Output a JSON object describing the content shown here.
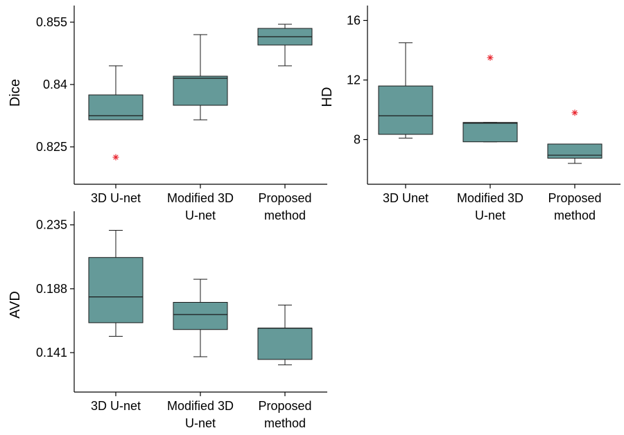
{
  "style": {
    "box_fill": "#659a99",
    "box_stroke": "#1a1a1a",
    "outlier_color": "#e8202a"
  },
  "chart_data": [
    {
      "type": "box",
      "ylabel": "Dice",
      "ylim": [
        0.816,
        0.859
      ],
      "yticks": [
        0.825,
        0.84,
        0.855
      ],
      "ytick_labels": [
        "0.825",
        "0.84",
        "0.855"
      ],
      "categories": [
        [
          "3D U-net"
        ],
        [
          "Modified 3D",
          "U-net"
        ],
        [
          "Proposed",
          "method"
        ]
      ],
      "boxes": [
        {
          "whisker_low": 0.8315,
          "q1": 0.8315,
          "median": 0.8325,
          "q3": 0.8375,
          "whisker_high": 0.8445,
          "outliers": [
            0.8225
          ]
        },
        {
          "whisker_low": 0.8315,
          "q1": 0.835,
          "median": 0.8415,
          "q3": 0.842,
          "whisker_high": 0.852,
          "outliers": []
        },
        {
          "whisker_low": 0.8445,
          "q1": 0.8495,
          "median": 0.8515,
          "q3": 0.8535,
          "whisker_high": 0.8545,
          "outliers": []
        }
      ]
    },
    {
      "type": "box",
      "ylabel": "HD",
      "ylim": [
        5,
        17
      ],
      "yticks": [
        8,
        12,
        16
      ],
      "ytick_labels": [
        "8",
        "12",
        "16"
      ],
      "categories": [
        [
          "3D Unet"
        ],
        [
          "Modified 3D",
          "U-net"
        ],
        [
          "Proposed",
          "method"
        ]
      ],
      "boxes": [
        {
          "whisker_low": 8.1,
          "q1": 8.35,
          "median": 9.6,
          "q3": 11.6,
          "whisker_high": 14.5,
          "outliers": []
        },
        {
          "whisker_low": 7.85,
          "q1": 7.85,
          "median": 9.1,
          "q3": 9.15,
          "whisker_high": 9.15,
          "outliers": [
            13.5
          ]
        },
        {
          "whisker_low": 6.4,
          "q1": 6.75,
          "median": 6.95,
          "q3": 7.7,
          "whisker_high": 7.7,
          "outliers": [
            9.8
          ]
        }
      ]
    },
    {
      "type": "box",
      "ylabel": "AVD",
      "ylim": [
        0.112,
        0.245
      ],
      "yticks": [
        0.141,
        0.188,
        0.235
      ],
      "ytick_labels": [
        "0.141",
        "0.188",
        "0.235"
      ],
      "categories": [
        [
          "3D U-net"
        ],
        [
          "Modified 3D",
          "U-net"
        ],
        [
          "Proposed",
          "method"
        ]
      ],
      "boxes": [
        {
          "whisker_low": 0.153,
          "q1": 0.163,
          "median": 0.182,
          "q3": 0.211,
          "whisker_high": 0.231,
          "outliers": []
        },
        {
          "whisker_low": 0.138,
          "q1": 0.158,
          "median": 0.169,
          "q3": 0.178,
          "whisker_high": 0.195,
          "outliers": []
        },
        {
          "whisker_low": 0.132,
          "q1": 0.136,
          "median": 0.159,
          "q3": 0.159,
          "whisker_high": 0.176,
          "outliers": []
        }
      ]
    }
  ]
}
